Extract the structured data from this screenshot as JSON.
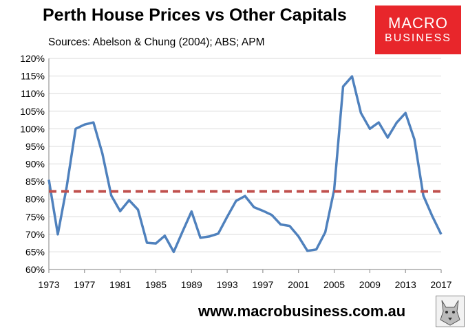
{
  "header": {
    "title": "Perth House Prices vs Other Capitals",
    "subtitle": "Sources: Abelson & Chung (2004); ABS; APM"
  },
  "logo": {
    "line1": "MACRO",
    "line2": "BUSINESS",
    "color": "#e8262b"
  },
  "footer": {
    "url": "www.macrobusiness.com.au"
  },
  "chart_data": {
    "type": "line",
    "title": "Perth House Prices vs Other Capitals",
    "xlabel": "",
    "ylabel": "",
    "ylim": [
      0.6,
      1.2
    ],
    "xlim": [
      1973,
      2017
    ],
    "y_ticks": [
      "60%",
      "65%",
      "70%",
      "75%",
      "80%",
      "85%",
      "90%",
      "95%",
      "100%",
      "105%",
      "110%",
      "115%",
      "120%"
    ],
    "x_ticks": [
      "1973",
      "1977",
      "1981",
      "1985",
      "1989",
      "1993",
      "1997",
      "2001",
      "2005",
      "2009",
      "2013",
      "2017"
    ],
    "grid": "horizontal",
    "legend": "none",
    "series": [
      {
        "color": "#4f81bd",
        "style": "solid",
        "x": [
          1973,
          1974,
          1975,
          1976,
          1977,
          1978,
          1979,
          1980,
          1981,
          1982,
          1983,
          1984,
          1985,
          1986,
          1987,
          1988,
          1989,
          1990,
          1991,
          1992,
          1993,
          1994,
          1995,
          1996,
          1997,
          1998,
          1999,
          2000,
          2001,
          2002,
          2003,
          2004,
          2005,
          2006,
          2007,
          2008,
          2009,
          2010,
          2011,
          2012,
          2013,
          2014,
          2015,
          2016,
          2017
        ],
        "values": [
          0.855,
          0.7,
          0.835,
          1.0,
          1.012,
          1.018,
          0.93,
          0.81,
          0.766,
          0.797,
          0.77,
          0.676,
          0.674,
          0.696,
          0.65,
          0.708,
          0.765,
          0.69,
          0.694,
          0.702,
          0.75,
          0.795,
          0.809,
          0.777,
          0.767,
          0.755,
          0.728,
          0.724,
          0.694,
          0.653,
          0.657,
          0.706,
          0.826,
          1.12,
          1.149,
          1.045,
          1.0,
          1.018,
          0.975,
          1.017,
          1.045,
          0.97,
          0.81,
          0.752,
          0.7
        ]
      },
      {
        "color": "#c0504d",
        "style": "dashed",
        "x": [
          1973,
          2017
        ],
        "values": [
          0.822,
          0.822
        ]
      }
    ]
  }
}
